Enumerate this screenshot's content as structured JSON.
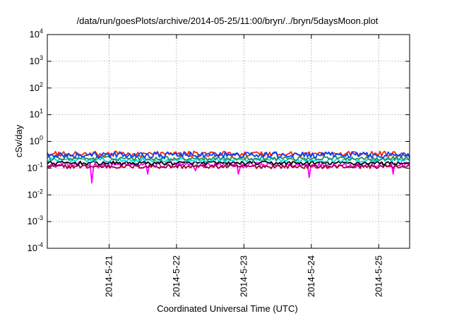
{
  "chart_data": {
    "type": "line",
    "title": "/data/run/goesPlots/archive/2014-05-25/11:00/bryn/../bryn/5daysMoon.plot",
    "xlabel": "Coordinated Universal Time (UTC)",
    "ylabel": "cSv/day",
    "y_scale": "log",
    "ylim": [
      0.0001,
      10000
    ],
    "y_ticks": [
      {
        "value": 10000,
        "base": "10",
        "exp": "4"
      },
      {
        "value": 1000,
        "base": "10",
        "exp": "3"
      },
      {
        "value": 100,
        "base": "10",
        "exp": "2"
      },
      {
        "value": 10,
        "base": "10",
        "exp": "1"
      },
      {
        "value": 1,
        "base": "10",
        "exp": "0"
      },
      {
        "value": 0.1,
        "base": "10",
        "exp": "-1"
      },
      {
        "value": 0.01,
        "base": "10",
        "exp": "-2"
      },
      {
        "value": 0.001,
        "base": "10",
        "exp": "-3"
      },
      {
        "value": 0.0001,
        "base": "10",
        "exp": "-4"
      }
    ],
    "xlim": [
      "2014-05-20 02:00",
      "2014-05-25 11:00"
    ],
    "x_ticks": [
      {
        "value": "2014-05-21 00:00",
        "label": "2014-5-21"
      },
      {
        "value": "2014-05-22 00:00",
        "label": "2014-5-22"
      },
      {
        "value": "2014-05-23 00:00",
        "label": "2014-5-23"
      },
      {
        "value": "2014-05-24 00:00",
        "label": "2014-5-24"
      },
      {
        "value": "2014-05-25 00:00",
        "label": "2014-5-25"
      }
    ],
    "grid": true,
    "legend": "none",
    "series": [
      {
        "color": "#ff00ff",
        "level": 0.13,
        "spread": 0.22,
        "dips": [
          {
            "x": "2014-05-20 18:00",
            "y": 0.028
          },
          {
            "x": "2014-05-21 14:00",
            "y": 0.06
          },
          {
            "x": "2014-05-22 07:00",
            "y": 0.08
          },
          {
            "x": "2014-05-22 22:00",
            "y": 0.06
          },
          {
            "x": "2014-05-23 23:00",
            "y": 0.045
          },
          {
            "x": "2014-05-25 05:00",
            "y": 0.06
          }
        ]
      },
      {
        "color": "#990033",
        "level": 0.115,
        "spread": 0.15,
        "dips": []
      },
      {
        "color": "#000000",
        "level": 0.155,
        "spread": 0.14,
        "dips": []
      },
      {
        "color": "#00dddd",
        "level": 0.2,
        "spread": 0.16,
        "dips": []
      },
      {
        "color": "#2e8b57",
        "level": 0.235,
        "spread": 0.16,
        "dips": []
      },
      {
        "color": "#ff2200",
        "level": 0.34,
        "spread": 0.2,
        "dips": []
      },
      {
        "color": "#0044ff",
        "level": 0.31,
        "spread": 0.22,
        "dips": []
      }
    ]
  }
}
